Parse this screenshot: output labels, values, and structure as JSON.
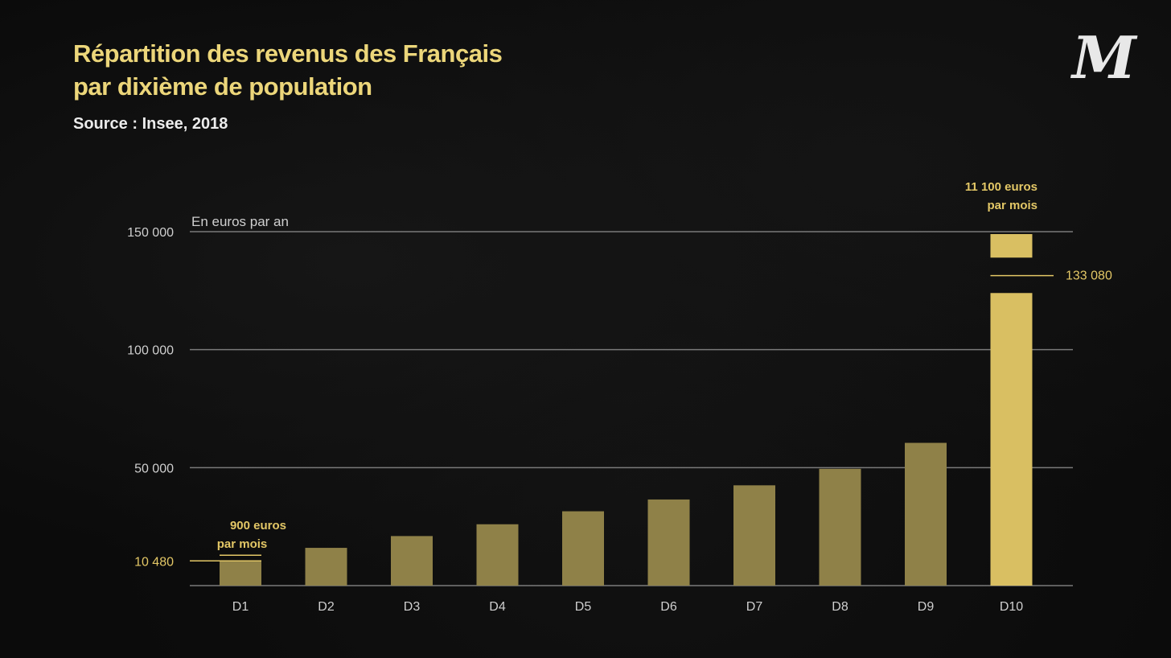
{
  "title_line1": "Répartition des revenus des Français",
  "title_line2": "par dixième de population",
  "source": "Source : Insee, 2018",
  "logo_text": "M",
  "colors": {
    "bar": "#8f8148",
    "bar_highlight": "#d9bf62",
    "text_gold": "#e3c766",
    "axis_text": "#cfcfcf",
    "grid": "#7a7a7a"
  },
  "chart_data": {
    "type": "bar",
    "ylabel": "En euros par an",
    "categories": [
      "D1",
      "D2",
      "D3",
      "D4",
      "D5",
      "D6",
      "D7",
      "D8",
      "D9",
      "D10"
    ],
    "values": [
      10480,
      16000,
      21000,
      26000,
      31500,
      36500,
      42500,
      49500,
      60500,
      133080
    ],
    "ylim": [
      0,
      150000
    ],
    "yticks": [
      "150 000",
      "100 000",
      "50 000"
    ],
    "y_break": true,
    "grid": true,
    "annotations": {
      "d1_value": "10 480",
      "d1_label_line1": "900 euros",
      "d1_label_line2": "par mois",
      "d10_value": "133 080",
      "d10_label_line1": "11 100 euros",
      "d10_label_line2": "par mois"
    }
  }
}
